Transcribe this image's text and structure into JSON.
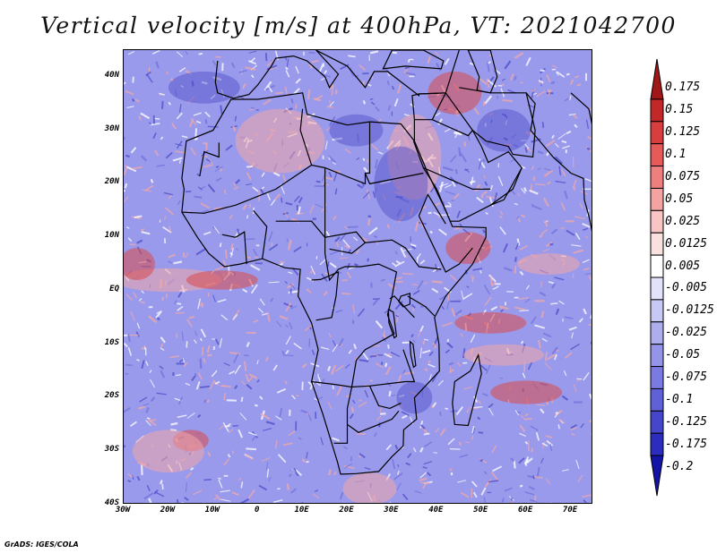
{
  "title": "Vertical velocity [m/s] at 400hPa, VT: 2021042700",
  "credit": "GrADS: IGES/COLA",
  "map": {
    "lon_range": [
      -30,
      75
    ],
    "lat_range": [
      -40,
      45
    ],
    "lat_ticks": [
      {
        "value": 40,
        "label": "40N"
      },
      {
        "value": 30,
        "label": "30N"
      },
      {
        "value": 20,
        "label": "20N"
      },
      {
        "value": 10,
        "label": "10N"
      },
      {
        "value": 0,
        "label": "EQ"
      },
      {
        "value": -10,
        "label": "10S"
      },
      {
        "value": -20,
        "label": "20S"
      },
      {
        "value": -30,
        "label": "30S"
      },
      {
        "value": -40,
        "label": "40S"
      }
    ],
    "lon_ticks": [
      {
        "value": -30,
        "label": "30W"
      },
      {
        "value": -20,
        "label": "20W"
      },
      {
        "value": -10,
        "label": "10W"
      },
      {
        "value": 0,
        "label": "0"
      },
      {
        "value": 10,
        "label": "10E"
      },
      {
        "value": 20,
        "label": "20E"
      },
      {
        "value": 30,
        "label": "30E"
      },
      {
        "value": 40,
        "label": "40E"
      },
      {
        "value": 50,
        "label": "50E"
      },
      {
        "value": 60,
        "label": "60E"
      },
      {
        "value": 70,
        "label": "70E"
      }
    ]
  },
  "colorbar": {
    "colors": [
      "#a01818",
      "#c22828",
      "#d83e3e",
      "#e65a5a",
      "#ef7f7f",
      "#f4a3a3",
      "#f8c4c4",
      "#fbe0e0",
      "#ffffff",
      "#e2e2fb",
      "#c8c8f4",
      "#aeaeee",
      "#9494e8",
      "#7a7ae2",
      "#6060d8",
      "#4646cc",
      "#2c2cbe",
      "#1414a8"
    ],
    "levels": [
      "0.175",
      "0.15",
      "0.125",
      "0.1",
      "0.075",
      "0.05",
      "0.025",
      "0.0125",
      "0.005",
      "-0.005",
      "-0.0125",
      "-0.025",
      "-0.05",
      "-0.075",
      "-0.1",
      "-0.125",
      "-0.175",
      "-0.2"
    ]
  },
  "map_palette": {
    "background": "#9a9aec",
    "strong_up": "#d84a4a",
    "up": "#f0a8a8",
    "down": "#7272dc",
    "strong_down": "#4c4cc8",
    "neutral": "#ffffff"
  }
}
